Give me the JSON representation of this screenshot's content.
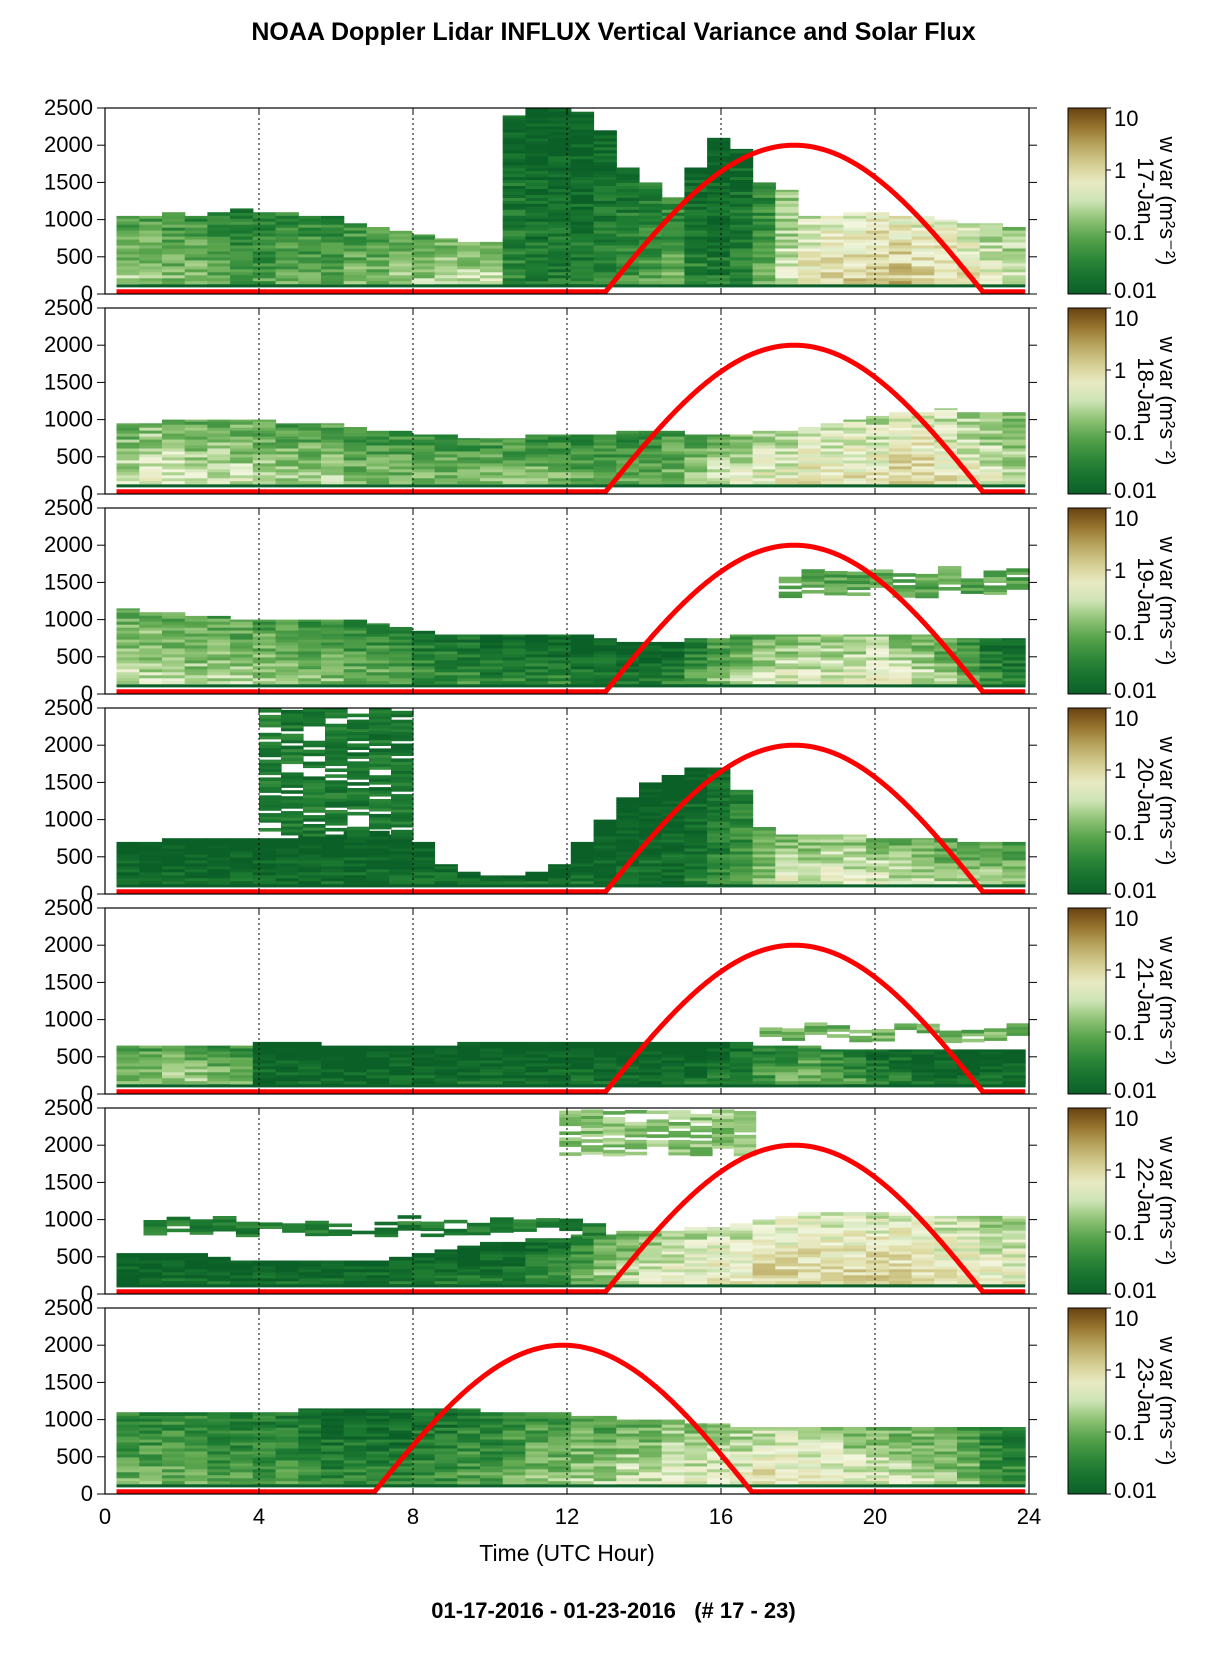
{
  "title": "NOAA Doppler Lidar INFLUX Vertical Variance and Solar Flux",
  "footer": "01-17-2016 - 01-23-2016   (# 17 - 23)",
  "xlabel": "Time (UTC Hour)",
  "colorbar_label": "w var (m²s⁻²)",
  "colorbar_ticks": [
    "10",
    "1",
    "0.1",
    "0.01"
  ],
  "colors": {
    "solar_flux": "#ff0000",
    "ground_line": "#0b5f2a",
    "variance_low": "#0b6a2e",
    "variance_mid": "#f2f6df",
    "variance_high": "#6b4212"
  },
  "chart_data": {
    "type": "heatmap",
    "title": "NOAA Doppler Lidar INFLUX Vertical Variance and Solar Flux",
    "xlabel": "Time (UTC Hour)",
    "xlim": [
      0,
      24
    ],
    "xticks": [
      0,
      4,
      8,
      12,
      16,
      20,
      24
    ],
    "ylim": [
      0,
      2500
    ],
    "yticks": [
      0,
      500,
      1000,
      1500,
      2000,
      2500
    ],
    "grid": "vertical dotted lines every 4 hours",
    "colorbar": {
      "label": "w var (m²s⁻²)",
      "scale": "log",
      "range": [
        0.01,
        10
      ]
    },
    "panels": [
      {
        "date": "17-Jan",
        "bl_top": [
          1050,
          1050,
          1100,
          1050,
          1100,
          1150,
          1100,
          1100,
          1050,
          1050,
          950,
          900,
          850,
          800,
          750,
          700,
          700,
          2400,
          2500,
          2500,
          2450,
          2200,
          1700,
          1500,
          1300,
          1700,
          2100,
          1950,
          1500,
          1400,
          1050,
          1050,
          1100,
          1100,
          1050,
          1050,
          1000,
          950,
          950,
          900
        ],
        "bl_base": [
          100,
          100,
          100,
          100,
          100,
          100,
          100,
          100,
          100,
          100,
          100,
          100,
          100,
          100,
          100,
          100,
          100,
          100,
          100,
          100,
          100,
          100,
          100,
          100,
          100,
          100,
          100,
          100,
          100,
          100,
          100,
          100,
          100,
          100,
          100,
          100,
          100,
          100,
          100,
          100
        ],
        "bl_level": [
          0.45,
          0.45,
          0.4,
          0.4,
          0.35,
          0.3,
          0.3,
          0.35,
          0.35,
          0.35,
          0.4,
          0.4,
          0.45,
          0.45,
          0.5,
          0.5,
          0.5,
          0.2,
          0.15,
          0.15,
          0.15,
          0.2,
          0.25,
          0.3,
          0.35,
          0.2,
          0.15,
          0.2,
          0.35,
          0.55,
          0.65,
          0.7,
          0.7,
          0.75,
          0.75,
          0.7,
          0.7,
          0.65,
          0.6,
          0.55
        ],
        "layers": [],
        "solar_flux": {
          "sunrise": 13.0,
          "peak_time": 17.9,
          "sunset": 22.8,
          "peak": 2000
        }
      },
      {
        "date": "18-Jan",
        "bl_top": [
          950,
          950,
          1000,
          1000,
          1000,
          1000,
          1000,
          950,
          950,
          950,
          900,
          850,
          850,
          800,
          800,
          750,
          750,
          750,
          800,
          800,
          800,
          800,
          850,
          850,
          850,
          800,
          800,
          800,
          850,
          850,
          900,
          950,
          1000,
          1050,
          1100,
          1100,
          1150,
          1100,
          1100,
          1100
        ],
        "bl_base": [
          100,
          100,
          100,
          100,
          100,
          100,
          100,
          100,
          100,
          100,
          100,
          100,
          100,
          100,
          100,
          100,
          100,
          100,
          100,
          100,
          100,
          100,
          100,
          100,
          100,
          100,
          100,
          100,
          100,
          100,
          100,
          100,
          100,
          100,
          100,
          100,
          100,
          100,
          100,
          100
        ],
        "bl_level": [
          0.5,
          0.55,
          0.55,
          0.5,
          0.5,
          0.5,
          0.45,
          0.45,
          0.45,
          0.45,
          0.4,
          0.4,
          0.4,
          0.4,
          0.4,
          0.4,
          0.4,
          0.4,
          0.4,
          0.4,
          0.35,
          0.35,
          0.35,
          0.35,
          0.4,
          0.45,
          0.5,
          0.55,
          0.6,
          0.6,
          0.65,
          0.65,
          0.65,
          0.65,
          0.7,
          0.7,
          0.65,
          0.6,
          0.55,
          0.5
        ],
        "layers": [],
        "solar_flux": {
          "sunrise": 13.0,
          "peak_time": 17.9,
          "sunset": 22.8,
          "peak": 2000
        }
      },
      {
        "date": "19-Jan",
        "bl_top": [
          1150,
          1100,
          1100,
          1050,
          1050,
          1000,
          1000,
          1000,
          1000,
          1000,
          1000,
          950,
          900,
          850,
          800,
          800,
          800,
          800,
          800,
          800,
          800,
          750,
          700,
          700,
          700,
          750,
          750,
          800,
          800,
          800,
          800,
          800,
          800,
          800,
          800,
          800,
          750,
          750,
          750,
          750
        ],
        "bl_base": [
          100,
          100,
          100,
          100,
          100,
          100,
          100,
          100,
          100,
          100,
          100,
          100,
          100,
          100,
          100,
          100,
          100,
          100,
          100,
          100,
          100,
          100,
          100,
          100,
          100,
          100,
          100,
          100,
          100,
          100,
          100,
          100,
          100,
          100,
          100,
          100,
          100,
          100,
          100,
          100
        ],
        "bl_level": [
          0.5,
          0.5,
          0.45,
          0.45,
          0.45,
          0.45,
          0.45,
          0.45,
          0.4,
          0.4,
          0.35,
          0.35,
          0.3,
          0.25,
          0.25,
          0.25,
          0.2,
          0.2,
          0.2,
          0.2,
          0.15,
          0.15,
          0.15,
          0.15,
          0.2,
          0.3,
          0.4,
          0.45,
          0.5,
          0.55,
          0.55,
          0.55,
          0.55,
          0.6,
          0.55,
          0.5,
          0.45,
          0.35,
          0.25,
          0.2
        ],
        "layers": [
          {
            "start": 17.5,
            "end": 24.0,
            "top": 1650,
            "bottom": 1350,
            "level": 0.3
          }
        ],
        "solar_flux": {
          "sunrise": 13.0,
          "peak_time": 17.9,
          "sunset": 22.8,
          "peak": 2000
        }
      },
      {
        "date": "20-Jan",
        "bl_top": [
          700,
          700,
          750,
          750,
          750,
          750,
          750,
          750,
          800,
          800,
          850,
          850,
          800,
          700,
          400,
          300,
          250,
          250,
          300,
          400,
          700,
          1000,
          1300,
          1500,
          1600,
          1700,
          1700,
          1400,
          900,
          800,
          800,
          800,
          800,
          750,
          750,
          750,
          750,
          700,
          700,
          700
        ],
        "bl_base": [
          100,
          100,
          100,
          100,
          100,
          100,
          100,
          100,
          100,
          100,
          100,
          100,
          100,
          100,
          100,
          100,
          100,
          100,
          100,
          100,
          100,
          100,
          100,
          100,
          100,
          100,
          100,
          100,
          100,
          100,
          100,
          100,
          100,
          100,
          100,
          100,
          100,
          100,
          100,
          100
        ],
        "bl_level": [
          0.1,
          0.1,
          0.1,
          0.1,
          0.1,
          0.1,
          0.1,
          0.1,
          0.1,
          0.1,
          0.1,
          0.1,
          0.1,
          0.12,
          0.15,
          0.15,
          0.15,
          0.15,
          0.12,
          0.1,
          0.1,
          0.1,
          0.1,
          0.1,
          0.1,
          0.15,
          0.2,
          0.3,
          0.45,
          0.55,
          0.55,
          0.55,
          0.55,
          0.55,
          0.5,
          0.5,
          0.45,
          0.45,
          0.45,
          0.4
        ],
        "layers": [
          {
            "start": 4.0,
            "end": 8.0,
            "top": 2500,
            "bottom": 800,
            "level": 0.12
          }
        ],
        "solar_flux": {
          "sunrise": 13.0,
          "peak_time": 17.9,
          "sunset": 22.8,
          "peak": 2000
        }
      },
      {
        "date": "21-Jan",
        "bl_top": [
          650,
          650,
          650,
          650,
          650,
          650,
          700,
          700,
          700,
          650,
          650,
          650,
          650,
          650,
          650,
          700,
          700,
          700,
          700,
          700,
          700,
          700,
          700,
          700,
          700,
          700,
          700,
          700,
          650,
          650,
          650,
          600,
          600,
          600,
          600,
          600,
          600,
          600,
          600,
          600
        ],
        "bl_base": [
          100,
          100,
          100,
          100,
          100,
          100,
          100,
          100,
          100,
          100,
          100,
          100,
          100,
          100,
          100,
          100,
          100,
          100,
          100,
          100,
          100,
          100,
          100,
          100,
          100,
          100,
          100,
          100,
          100,
          100,
          100,
          100,
          100,
          100,
          100,
          100,
          100,
          100,
          100,
          100
        ],
        "bl_level": [
          0.4,
          0.45,
          0.45,
          0.45,
          0.4,
          0.4,
          0.1,
          0.1,
          0.1,
          0.1,
          0.1,
          0.1,
          0.1,
          0.1,
          0.1,
          0.1,
          0.1,
          0.1,
          0.1,
          0.1,
          0.1,
          0.1,
          0.1,
          0.1,
          0.1,
          0.12,
          0.15,
          0.2,
          0.3,
          0.35,
          0.4,
          0.35,
          0.3,
          0.25,
          0.2,
          0.15,
          0.12,
          0.1,
          0.1,
          0.1
        ],
        "layers": [
          {
            "start": 17.0,
            "end": 24.0,
            "top": 900,
            "bottom": 750,
            "level": 0.35
          }
        ],
        "solar_flux": {
          "sunrise": 13.0,
          "peak_time": 17.9,
          "sunset": 22.8,
          "peak": 2000
        }
      },
      {
        "date": "22-Jan",
        "bl_top": [
          550,
          550,
          550,
          550,
          500,
          450,
          450,
          450,
          450,
          450,
          450,
          450,
          500,
          550,
          600,
          650,
          700,
          700,
          750,
          750,
          800,
          800,
          850,
          850,
          850,
          900,
          900,
          950,
          1000,
          1050,
          1100,
          1100,
          1100,
          1100,
          1100,
          1050,
          1050,
          1050,
          1050,
          1050
        ],
        "bl_base": [
          100,
          100,
          100,
          100,
          100,
          100,
          100,
          100,
          100,
          100,
          100,
          100,
          100,
          100,
          100,
          100,
          100,
          100,
          100,
          100,
          100,
          100,
          100,
          100,
          100,
          100,
          100,
          100,
          100,
          100,
          100,
          100,
          100,
          100,
          100,
          100,
          100,
          100,
          100,
          100
        ],
        "bl_level": [
          0.1,
          0.1,
          0.1,
          0.1,
          0.1,
          0.1,
          0.1,
          0.1,
          0.1,
          0.12,
          0.12,
          0.15,
          0.15,
          0.15,
          0.15,
          0.15,
          0.15,
          0.15,
          0.2,
          0.25,
          0.35,
          0.45,
          0.5,
          0.55,
          0.6,
          0.6,
          0.65,
          0.65,
          0.7,
          0.7,
          0.7,
          0.7,
          0.7,
          0.7,
          0.7,
          0.7,
          0.65,
          0.65,
          0.6,
          0.6
        ],
        "layers": [
          {
            "start": 1.0,
            "end": 13.0,
            "top": 1000,
            "bottom": 800,
            "level": 0.15
          },
          {
            "start": 11.8,
            "end": 16.9,
            "top": 2450,
            "bottom": 1850,
            "level": 0.4
          }
        ],
        "solar_flux": {
          "sunrise": 13.0,
          "peak_time": 17.9,
          "sunset": 22.8,
          "peak": 2000
        }
      },
      {
        "date": "23-Jan",
        "bl_top": [
          1100,
          1100,
          1100,
          1100,
          1100,
          1100,
          1100,
          1100,
          1150,
          1150,
          1150,
          1150,
          1150,
          1150,
          1150,
          1150,
          1100,
          1100,
          1100,
          1100,
          1050,
          1050,
          1000,
          1000,
          1000,
          950,
          950,
          900,
          900,
          900,
          900,
          900,
          900,
          900,
          900,
          900,
          900,
          900,
          900,
          900
        ],
        "bl_base": [
          100,
          100,
          100,
          100,
          100,
          100,
          100,
          100,
          100,
          100,
          100,
          100,
          100,
          100,
          100,
          100,
          100,
          100,
          100,
          100,
          100,
          100,
          100,
          100,
          100,
          100,
          100,
          100,
          100,
          100,
          100,
          100,
          100,
          100,
          100,
          100,
          100,
          100,
          100,
          100
        ],
        "bl_level": [
          0.35,
          0.35,
          0.35,
          0.35,
          0.3,
          0.3,
          0.3,
          0.3,
          0.25,
          0.2,
          0.2,
          0.2,
          0.2,
          0.25,
          0.25,
          0.3,
          0.3,
          0.35,
          0.4,
          0.4,
          0.45,
          0.45,
          0.5,
          0.5,
          0.55,
          0.55,
          0.6,
          0.6,
          0.65,
          0.65,
          0.6,
          0.6,
          0.55,
          0.55,
          0.5,
          0.5,
          0.45,
          0.4,
          0.3,
          0.25
        ],
        "layers": [],
        "solar_flux": {
          "sunrise": 7.0,
          "peak_time": 11.9,
          "sunset": 16.8,
          "peak": 2000
        }
      }
    ]
  }
}
